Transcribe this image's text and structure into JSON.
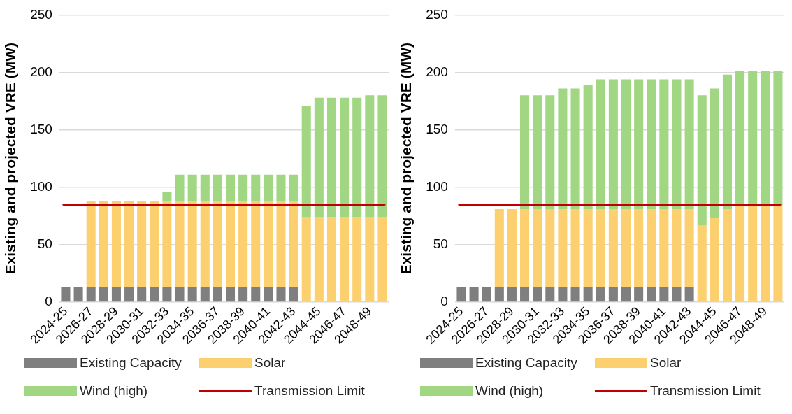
{
  "chart_data": [
    {
      "type": "bar",
      "stacked": true,
      "ylabel": "Existing and projected VRE (MW)",
      "categories": [
        "2024-25",
        null,
        "2026-27",
        null,
        "2028-29",
        null,
        "2030-31",
        null,
        "2032-33",
        null,
        "2034-35",
        null,
        "2036-37",
        null,
        "2038-39",
        null,
        "2040-41",
        null,
        "2042-43",
        null,
        "2044-45",
        null,
        "2046-47",
        null,
        "2048-49",
        null
      ],
      "series": [
        {
          "name": "Existing Capacity",
          "color": "#7f7f7f",
          "values": [
            13,
            13,
            13,
            13,
            13,
            13,
            13,
            13,
            13,
            13,
            13,
            13,
            13,
            13,
            13,
            13,
            13,
            13,
            13,
            0,
            0,
            0,
            0,
            0,
            0,
            0
          ]
        },
        {
          "name": "Solar",
          "color": "#fcd06e",
          "values": [
            0,
            0,
            75,
            75,
            75,
            75,
            75,
            75,
            75,
            75,
            75,
            75,
            75,
            75,
            75,
            75,
            75,
            75,
            75,
            74,
            74,
            74,
            74,
            74,
            74,
            74
          ]
        },
        {
          "name": "Wind (high)",
          "color": "#a1d682",
          "values": [
            0,
            0,
            0,
            0,
            0,
            0,
            0,
            0,
            8,
            23,
            23,
            23,
            23,
            23,
            23,
            23,
            23,
            23,
            23,
            97,
            104,
            104,
            104,
            104,
            106,
            106
          ]
        }
      ],
      "ref_lines": [
        {
          "axis": "y",
          "value": 85,
          "label": "Transmission Limit",
          "color": "#c00000"
        }
      ],
      "ylim": [
        0,
        250
      ],
      "yticks": [
        0,
        50,
        100,
        150,
        200,
        250
      ],
      "grid": "y",
      "legend": "bottom"
    },
    {
      "type": "bar",
      "stacked": true,
      "ylabel": "Existing and projected VRE (MW)",
      "categories": [
        "2024-25",
        null,
        "2026-27",
        null,
        "2028-29",
        null,
        "2030-31",
        null,
        "2032-33",
        null,
        "2034-35",
        null,
        "2036-37",
        null,
        "2038-39",
        null,
        "2040-41",
        null,
        "2042-43",
        null,
        "2044-45",
        null,
        "2046-47",
        null,
        "2048-49",
        null
      ],
      "series": [
        {
          "name": "Existing Capacity",
          "color": "#7f7f7f",
          "values": [
            13,
            13,
            13,
            13,
            13,
            13,
            13,
            13,
            13,
            13,
            13,
            13,
            13,
            13,
            13,
            13,
            13,
            13,
            13,
            0,
            0,
            0,
            0,
            0,
            0,
            0
          ]
        },
        {
          "name": "Solar",
          "color": "#fcd06e",
          "values": [
            0,
            0,
            0,
            68,
            68,
            68,
            68,
            68,
            68,
            68,
            68,
            68,
            68,
            68,
            68,
            68,
            68,
            68,
            68,
            67,
            73,
            81,
            84,
            84,
            84,
            84
          ]
        },
        {
          "name": "Wind (high)",
          "color": "#a1d682",
          "values": [
            0,
            0,
            0,
            0,
            0,
            99,
            99,
            99,
            105,
            105,
            108,
            113,
            113,
            113,
            113,
            113,
            113,
            113,
            113,
            113,
            113,
            117,
            117,
            117,
            117,
            117
          ]
        }
      ],
      "ref_lines": [
        {
          "axis": "y",
          "value": 85,
          "label": "Transmission Limit",
          "color": "#c00000"
        }
      ],
      "ylim": [
        0,
        250
      ],
      "yticks": [
        0,
        50,
        100,
        150,
        200,
        250
      ],
      "grid": "y",
      "legend": "bottom"
    }
  ]
}
